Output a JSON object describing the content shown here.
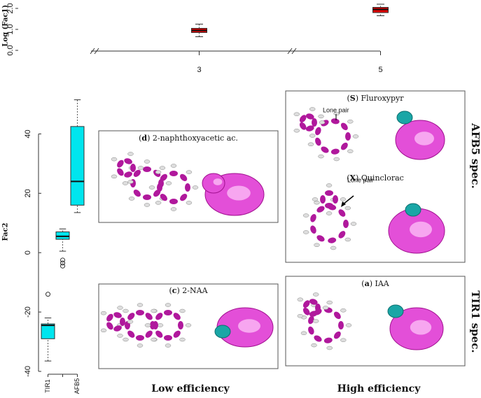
{
  "chart_data": [
    {
      "type": "box",
      "ylabel": "Log (Fac1)",
      "categories": [
        "3",
        "5"
      ],
      "color": "#e00000",
      "boxes": [
        {
          "min": 0.65,
          "q1": 0.85,
          "median": 0.95,
          "q3": 1.05,
          "max": 1.25,
          "outliers": []
        },
        {
          "min": 1.65,
          "q1": 1.8,
          "median": 1.95,
          "q3": 2.05,
          "max": 2.2,
          "outliers": []
        }
      ],
      "ylim": [
        -0.05,
        2.4
      ],
      "yticks": [
        {
          "value": 0,
          "label": "0.0"
        },
        {
          "value": 1,
          "label": "1.0"
        },
        {
          "value": 2,
          "label": "2.0"
        }
      ],
      "axis_break": true
    },
    {
      "type": "box",
      "ylabel": "Fac2",
      "categories": [
        "TIR1",
        null,
        "AFB5"
      ],
      "color": "#00e5ee",
      "boxes": [
        {
          "min": -36.5,
          "q1": -29,
          "median": -24.5,
          "q3": -24,
          "max": -22,
          "outliers": [
            -14
          ]
        },
        {
          "min": 0.5,
          "q1": 4.5,
          "median": 5.5,
          "q3": 7,
          "max": 8,
          "outliers": [
            -2.5,
            -3.5,
            -4.5
          ]
        },
        {
          "min": 13.5,
          "q1": 16,
          "median": 24,
          "q3": 42.5,
          "max": 51.5,
          "outliers": []
        }
      ],
      "ylim": [
        -41,
        55
      ],
      "yticks": [
        -40,
        -20,
        0,
        20,
        40
      ],
      "axis_break": false
    }
  ],
  "panels": [
    {
      "label": "d",
      "name": "2-naphthoxyacetic ac."
    },
    {
      "label": "c",
      "name": "2-NAA"
    },
    {
      "label": "S",
      "name": "Fluroxypyr",
      "note": "Lone pair"
    },
    {
      "label": "X",
      "name": "Quinclorac",
      "note": "Lone pair"
    },
    {
      "label": "a",
      "name": "IAA"
    }
  ],
  "row_labels": [
    "AFB5 spec.",
    "TIR1 spec."
  ],
  "column_labels": [
    "Low efficiency",
    "High efficiency"
  ]
}
